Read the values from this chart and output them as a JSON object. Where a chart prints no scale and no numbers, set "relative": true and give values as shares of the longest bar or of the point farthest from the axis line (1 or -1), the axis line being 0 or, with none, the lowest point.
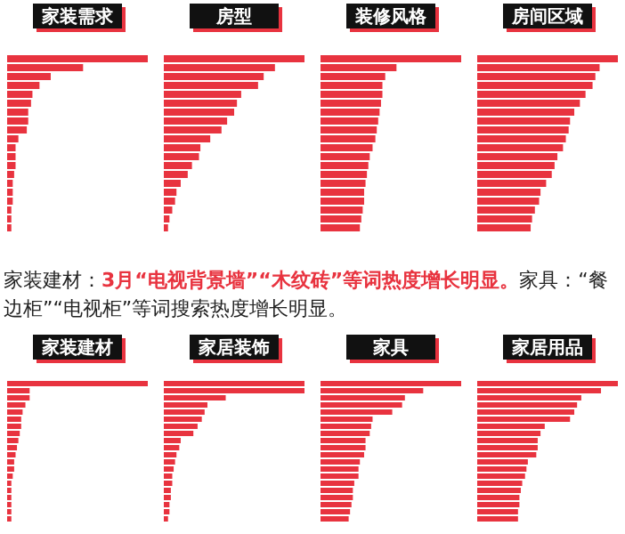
{
  "chart_data": [
    {
      "type": "bar",
      "orientation": "horizontal",
      "relative": true,
      "title": "家装需求",
      "color": "#e8333f",
      "categories": [
        null,
        null,
        null,
        null,
        null,
        null,
        null,
        null,
        null,
        null,
        null,
        null,
        null,
        null,
        null,
        null,
        null,
        null,
        null,
        null
      ],
      "values": [
        1,
        0.54,
        0.31,
        0.23,
        0.18,
        0.17,
        0.15,
        0.15,
        0.14,
        0.08,
        0.06,
        0.06,
        0.06,
        0.05,
        0.04,
        0.04,
        0.04,
        0.03,
        0.03,
        0.03
      ]
    },
    {
      "type": "bar",
      "orientation": "horizontal",
      "relative": true,
      "title": "房型",
      "color": "#e8333f",
      "categories": [
        null,
        null,
        null,
        null,
        null,
        null,
        null,
        null,
        null,
        null,
        null,
        null,
        null,
        null,
        null,
        null,
        null,
        null,
        null,
        null
      ],
      "values": [
        1,
        0.79,
        0.71,
        0.67,
        0.55,
        0.52,
        0.5,
        0.45,
        0.41,
        0.33,
        0.26,
        0.25,
        0.2,
        0.17,
        0.12,
        0.09,
        0.08,
        0.06,
        0.04,
        0.03
      ]
    },
    {
      "type": "bar",
      "orientation": "horizontal",
      "relative": true,
      "title": "装修风格",
      "color": "#e8333f",
      "categories": [
        null,
        null,
        null,
        null,
        null,
        null,
        null,
        null,
        null,
        null,
        null,
        null,
        null,
        null,
        null,
        null,
        null,
        null,
        null,
        null
      ],
      "values": [
        1,
        0.54,
        0.46,
        0.44,
        0.44,
        0.43,
        0.42,
        0.41,
        0.4,
        0.39,
        0.37,
        0.35,
        0.34,
        0.33,
        0.32,
        0.31,
        0.31,
        0.3,
        0.29,
        0.28
      ]
    },
    {
      "type": "bar",
      "orientation": "horizontal",
      "relative": true,
      "title": "房间区域",
      "color": "#e8333f",
      "categories": [
        null,
        null,
        null,
        null,
        null,
        null,
        null,
        null,
        null,
        null,
        null,
        null,
        null,
        null,
        null,
        null,
        null,
        null,
        null,
        null
      ],
      "values": [
        1,
        0.87,
        0.84,
        0.82,
        0.77,
        0.73,
        0.69,
        0.66,
        0.65,
        0.63,
        0.61,
        0.57,
        0.55,
        0.53,
        0.49,
        0.45,
        0.44,
        0.41,
        0.39,
        0.38
      ]
    },
    {
      "type": "bar",
      "orientation": "horizontal",
      "relative": true,
      "title": "家装建材",
      "color": "#e8333f",
      "annotations": [
        "家装建材：",
        "3月“电视背景墙”“木纹砖”等词热度增长明显。",
        "家具：“餐边柜”“电视柜”等词搜索热度增长明显。"
      ],
      "categories": [
        null,
        null,
        null,
        null,
        null,
        null,
        null,
        null,
        null,
        null,
        null,
        null,
        null,
        null,
        null,
        null,
        null,
        null,
        null,
        null
      ],
      "values": [
        1,
        0.16,
        0.16,
        0.13,
        0.11,
        0.1,
        0.1,
        0.09,
        0.08,
        0.07,
        0.06,
        0.05,
        0.05,
        0.04,
        0.03,
        0.03,
        0.03,
        0.03,
        0.03,
        0.03
      ]
    },
    {
      "type": "bar",
      "orientation": "horizontal",
      "relative": true,
      "title": "家居装饰",
      "color": "#e8333f",
      "categories": [
        null,
        null,
        null,
        null,
        null,
        null,
        null,
        null,
        null,
        null,
        null,
        null,
        null,
        null,
        null,
        null,
        null,
        null,
        null,
        null
      ],
      "values": [
        1,
        1,
        0.44,
        0.31,
        0.29,
        0.27,
        0.24,
        0.21,
        0.12,
        0.11,
        0.09,
        0.08,
        0.07,
        0.06,
        0.06,
        0.05,
        0.05,
        0.04,
        0.04,
        0.03
      ]
    },
    {
      "type": "bar",
      "orientation": "horizontal",
      "relative": true,
      "title": "家具",
      "color": "#e8333f",
      "categories": [
        null,
        null,
        null,
        null,
        null,
        null,
        null,
        null,
        null,
        null,
        null,
        null,
        null,
        null,
        null,
        null,
        null,
        null,
        null,
        null
      ],
      "values": [
        1,
        0.73,
        0.6,
        0.58,
        0.51,
        0.37,
        0.36,
        0.35,
        0.32,
        0.32,
        0.31,
        0.28,
        0.27,
        0.27,
        0.24,
        0.23,
        0.23,
        0.22,
        0.21,
        0.2
      ]
    },
    {
      "type": "bar",
      "orientation": "horizontal",
      "relative": true,
      "title": "家居用品",
      "color": "#e8333f",
      "categories": [
        null,
        null,
        null,
        null,
        null,
        null,
        null,
        null,
        null,
        null,
        null,
        null,
        null,
        null,
        null,
        null,
        null,
        null,
        null,
        null
      ],
      "values": [
        1,
        0.88,
        0.74,
        0.71,
        0.69,
        0.66,
        0.48,
        0.45,
        0.43,
        0.43,
        0.42,
        0.36,
        0.35,
        0.34,
        0.32,
        0.31,
        0.3,
        0.3,
        0.29,
        0.29
      ]
    }
  ]
}
